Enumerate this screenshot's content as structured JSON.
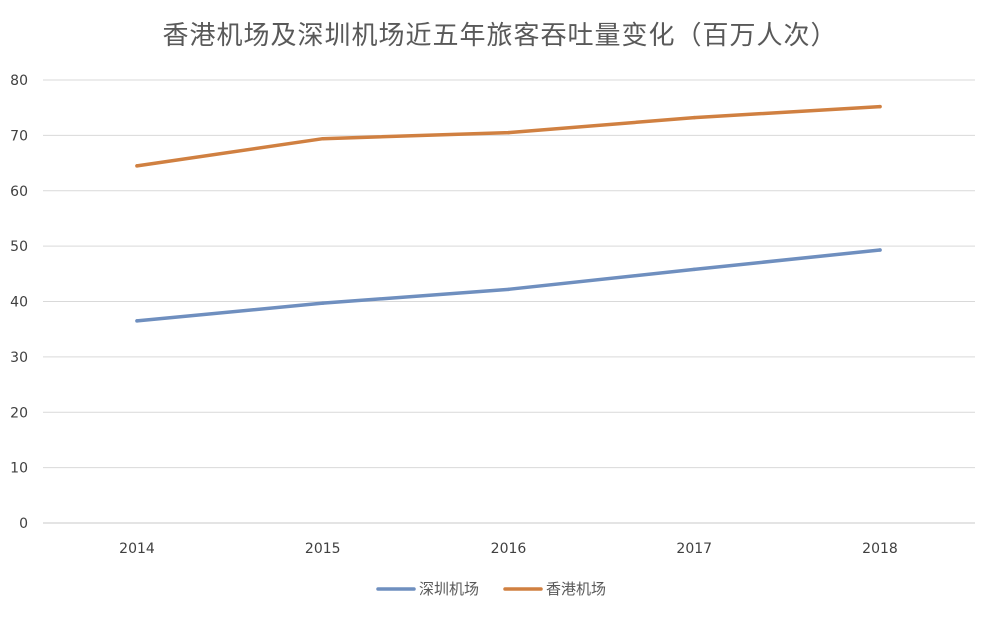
{
  "chart_data": {
    "type": "line",
    "title": "香港机场及深圳机场近五年旅客吞吐量变化（百万人次）",
    "xlabel": "",
    "ylabel": "",
    "categories": [
      "2014",
      "2015",
      "2016",
      "2017",
      "2018"
    ],
    "ylim": [
      0,
      80
    ],
    "yticks": [
      0,
      10,
      20,
      30,
      40,
      50,
      60,
      70,
      80
    ],
    "grid": true,
    "legend_position": "bottom",
    "series": [
      {
        "name": "深圳机场",
        "color": "#6f8fbf",
        "values": [
          36.5,
          39.7,
          42.2,
          45.8,
          49.3
        ]
      },
      {
        "name": "香港机场",
        "color": "#d08041",
        "values": [
          64.5,
          69.4,
          70.5,
          73.2,
          75.2
        ]
      }
    ]
  }
}
